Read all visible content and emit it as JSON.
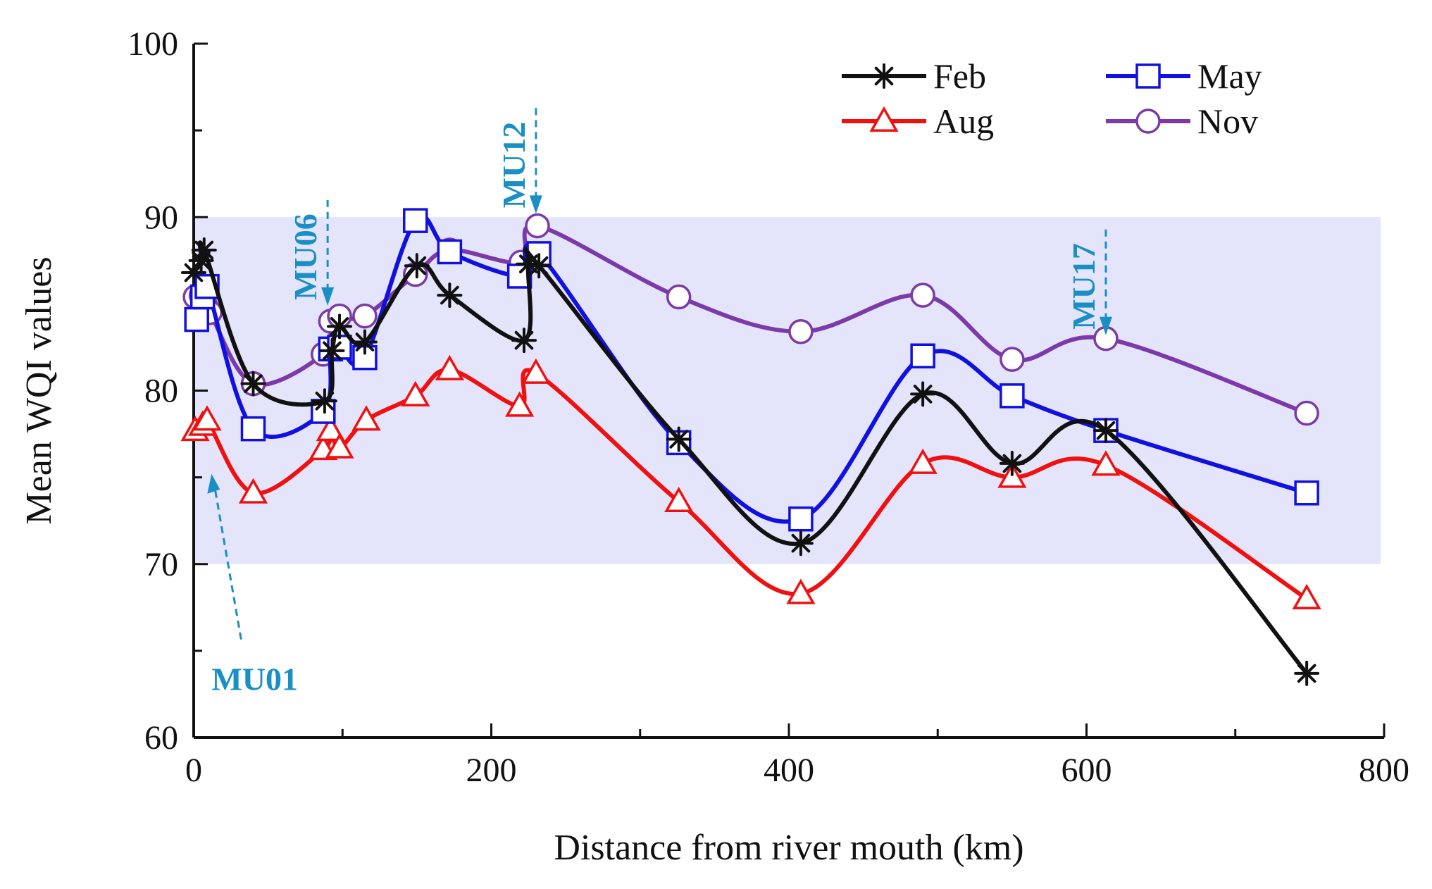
{
  "chart_data": {
    "type": "line",
    "title": "",
    "xlabel": "Distance from river mouth (km)",
    "ylabel": "Mean WQI values",
    "xlim": [
      0,
      800
    ],
    "ylim": [
      60,
      100
    ],
    "xticks": [
      "0",
      "200",
      "400",
      "600",
      "800"
    ],
    "xtick_values": [
      0,
      200,
      400,
      600,
      800
    ],
    "yticks": [
      "60",
      "70",
      "80",
      "90",
      "100"
    ],
    "ytick_values": [
      60,
      70,
      80,
      90,
      100
    ],
    "grid": false,
    "legend_position": "top-right",
    "band": {
      "y_from": 70,
      "y_to": 90,
      "color": "#e4e4fa"
    },
    "series": [
      {
        "name": "Feb",
        "color": "#111111",
        "marker": "star",
        "x": [
          0,
          5,
          7,
          40,
          88,
          93,
          98,
          115,
          150,
          172,
          222,
          225,
          232,
          326,
          408,
          490,
          550,
          613,
          748
        ],
        "y": [
          86.8,
          87.5,
          88.1,
          80.4,
          79.4,
          82.3,
          83.7,
          82.8,
          87.2,
          85.5,
          82.9,
          87.3,
          87.2,
          77.2,
          71.2,
          79.8,
          75.8,
          77.7,
          63.7
        ]
      },
      {
        "name": "May",
        "color": "#1010e0",
        "marker": "square",
        "x": [
          2,
          6,
          9,
          40,
          87,
          92,
          98,
          115,
          149,
          172,
          219,
          232,
          326,
          408,
          490,
          550,
          613,
          748
        ],
        "y": [
          84.1,
          85.4,
          86.0,
          77.8,
          78.8,
          82.4,
          82.5,
          81.9,
          89.8,
          88.0,
          86.6,
          87.9,
          77.0,
          72.6,
          82.0,
          79.7,
          77.7,
          74.1
        ]
      },
      {
        "name": "Aug",
        "color": "#f01010",
        "marker": "triangle",
        "x": [
          1,
          6,
          9,
          40,
          87,
          92,
          98,
          116,
          149,
          172,
          219,
          230,
          326,
          408,
          490,
          550,
          613,
          748
        ],
        "y": [
          77.7,
          78.0,
          78.3,
          74.1,
          76.6,
          77.7,
          76.7,
          78.3,
          79.7,
          81.2,
          79.1,
          81.0,
          73.6,
          68.3,
          75.8,
          75.0,
          75.7,
          68.0
        ]
      },
      {
        "name": "Nov",
        "color": "#7b3aa8",
        "marker": "circle",
        "x": [
          1,
          5,
          8,
          11,
          40,
          87,
          92,
          98,
          115,
          149,
          172,
          220,
          231,
          326,
          408,
          490,
          550,
          613,
          748
        ],
        "y": [
          85.4,
          85.5,
          84.9,
          84.5,
          80.4,
          82.1,
          84.0,
          84.3,
          84.3,
          86.7,
          88.1,
          87.4,
          89.5,
          85.4,
          83.4,
          85.5,
          81.8,
          83.0,
          78.7
        ]
      }
    ],
    "annotations": [
      {
        "label": "MU01",
        "x": 12,
        "y": 75.2,
        "orientation": "horizontal"
      },
      {
        "label": "MU06",
        "x": 90,
        "y": 84.9,
        "orientation": "vertical"
      },
      {
        "label": "MU12",
        "x": 230,
        "y": 90.2,
        "orientation": "vertical"
      },
      {
        "label": "MU17",
        "x": 613,
        "y": 83.2,
        "orientation": "vertical"
      }
    ],
    "annotation_color": "#1a8fc4"
  }
}
